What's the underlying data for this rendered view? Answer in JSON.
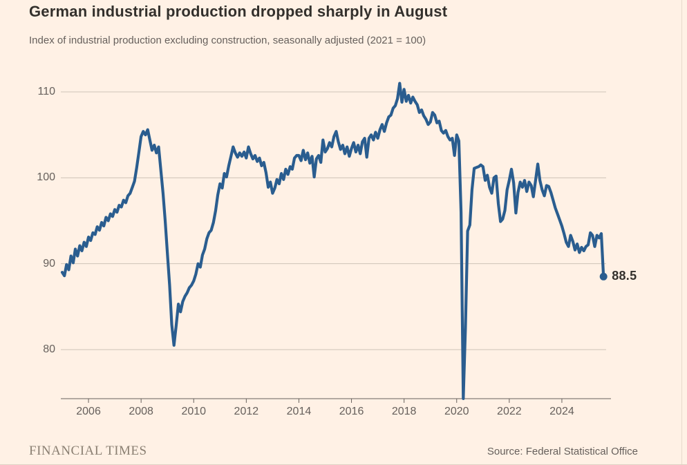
{
  "chart_data": {
    "type": "line",
    "title": "German industrial production dropped sharply in August",
    "subtitle": "Index of industrial production excluding construction, seasonally adjusted (2021 = 100)",
    "source": "Source: Federal Statistical Office",
    "brand": "FINANCIAL TIMES",
    "frequency": "monthly",
    "x_start": "2005-01",
    "x_end": "2025-08",
    "xlim": [
      2005.0,
      2025.75
    ],
    "ylim": [
      74.3,
      112.8
    ],
    "x_ticks": [
      "2006",
      "2008",
      "2010",
      "2012",
      "2014",
      "2016",
      "2018",
      "2020",
      "2022",
      "2024"
    ],
    "y_ticks": [
      "110",
      "100",
      "90",
      "80"
    ],
    "y_tick_values": [
      110,
      100,
      90,
      80
    ],
    "grid": "horizontal",
    "legend": "none",
    "line_color": "#2A5D8F",
    "end_point": {
      "label": "88.5",
      "value": 88.5,
      "date": "2025-08"
    },
    "series": [
      {
        "name": "Index of industrial production excluding construction (2021 = 100)",
        "values": [
          89.0,
          88.6,
          89.9,
          89.3,
          90.9,
          90.1,
          91.7,
          90.9,
          92.1,
          91.5,
          92.5,
          92.0,
          93.1,
          92.7,
          93.6,
          93.4,
          94.3,
          93.9,
          94.8,
          94.4,
          95.4,
          95.0,
          95.8,
          95.5,
          96.3,
          96.0,
          96.8,
          96.6,
          97.4,
          97.1,
          97.9,
          98.2,
          98.9,
          99.6,
          101.2,
          103.0,
          104.8,
          105.4,
          105.0,
          105.6,
          104.4,
          103.2,
          103.8,
          102.9,
          103.6,
          100.9,
          98.2,
          95.0,
          91.2,
          87.5,
          82.9,
          80.5,
          82.8,
          85.3,
          84.4,
          85.6,
          86.2,
          86.6,
          87.2,
          87.5,
          88.0,
          88.8,
          90.0,
          89.6,
          91.0,
          91.7,
          92.9,
          93.6,
          93.9,
          94.8,
          96.2,
          98.0,
          99.3,
          98.8,
          100.5,
          100.1,
          101.4,
          102.5,
          103.6,
          102.9,
          102.4,
          102.9,
          102.5,
          103.0,
          102.3,
          103.6,
          102.8,
          102.2,
          102.6,
          101.9,
          102.3,
          101.4,
          101.8,
          100.6,
          98.9,
          99.5,
          98.2,
          98.8,
          99.8,
          99.3,
          100.5,
          99.8,
          101.0,
          100.4,
          101.3,
          101.0,
          102.3,
          102.6,
          102.6,
          102.0,
          103.2,
          102.1,
          102.9,
          101.7,
          102.5,
          100.1,
          102.2,
          102.6,
          101.8,
          104.4,
          103.0,
          103.4,
          104.1,
          103.6,
          104.8,
          105.4,
          104.2,
          103.3,
          103.8,
          102.8,
          103.6,
          102.5,
          103.4,
          104.1,
          103.0,
          103.8,
          102.8,
          104.2,
          104.6,
          102.4,
          104.6,
          105.0,
          104.4,
          105.3,
          104.6,
          105.6,
          106.2,
          105.4,
          106.4,
          107.1,
          107.3,
          108.1,
          108.4,
          109.2,
          111.0,
          108.8,
          110.3,
          108.9,
          109.6,
          108.7,
          109.4,
          108.9,
          108.5,
          107.6,
          107.9,
          107.2,
          106.8,
          106.2,
          106.5,
          107.6,
          107.3,
          106.4,
          106.6,
          105.5,
          105.2,
          105.5,
          104.8,
          104.4,
          104.6,
          102.6,
          105.0,
          104.3,
          96.0,
          74.3,
          82.5,
          93.8,
          94.5,
          98.6,
          101.1,
          101.2,
          101.3,
          101.5,
          101.3,
          99.7,
          100.3,
          98.9,
          98.2,
          100.0,
          100.2,
          97.0,
          94.9,
          95.2,
          96.2,
          98.6,
          99.7,
          101.0,
          99.4,
          95.9,
          98.3,
          99.5,
          98.9,
          99.7,
          98.4,
          99.5,
          99.1,
          97.8,
          99.7,
          101.6,
          99.7,
          98.6,
          97.9,
          99.1,
          99.0,
          98.3,
          97.4,
          96.5,
          95.8,
          95.1,
          94.4,
          93.5,
          92.5,
          92.0,
          93.3,
          92.6,
          91.6,
          92.3,
          91.3,
          91.9,
          91.5,
          92.0,
          92.2,
          93.6,
          93.3,
          92.0,
          93.3,
          93.0,
          93.5,
          88.5
        ]
      }
    ]
  },
  "colors": {
    "background": "#FFF1E5",
    "line": "#2A5D8F",
    "title_text": "#33302C",
    "muted_text": "#66605C",
    "gridline": "#CDC2B6",
    "axis_line": "#66605C",
    "brand_text": "#8A7F72"
  }
}
